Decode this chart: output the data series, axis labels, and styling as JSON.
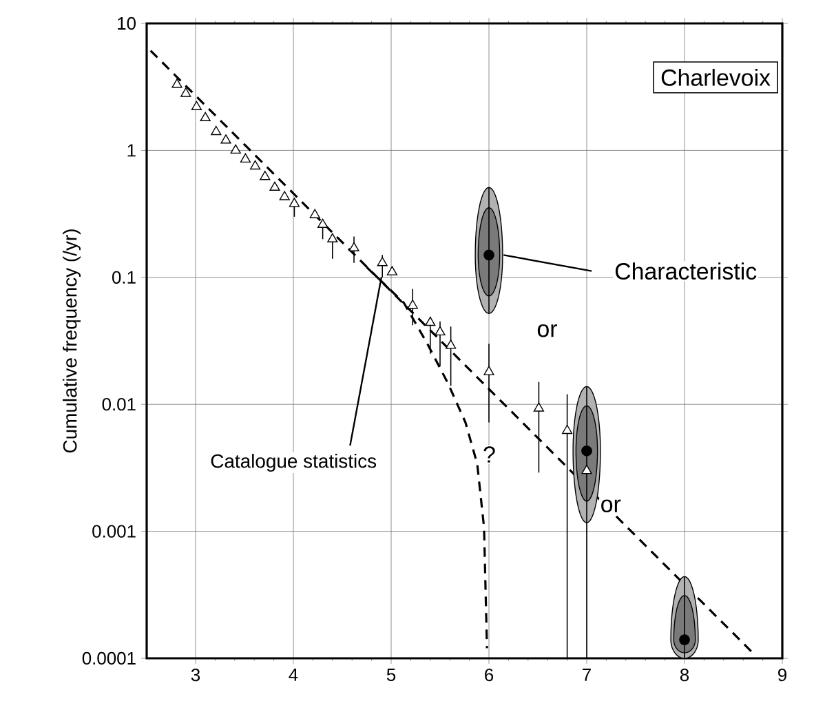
{
  "chart_data": {
    "type": "scatter",
    "ylabel": "Cumulative frequency (/yr)",
    "xlim": [
      2.5,
      9
    ],
    "ylim": [
      0.0001,
      10
    ],
    "xticks": [
      3,
      4,
      5,
      6,
      7,
      8,
      9
    ],
    "yticks": [
      0.0001,
      0.001,
      0.01,
      0.1,
      1,
      10
    ],
    "log": "y",
    "grid": true,
    "annotations": [
      "Charlevoix",
      "Characteristic",
      {
        "text": "Catalogue statistics",
        "x": 4.9,
        "y": 0.1
      },
      "or",
      "or",
      "?"
    ],
    "series": [
      {
        "marker": "triangle",
        "color": "#ffffff",
        "x": [
          2.81,
          2.9,
          3.01,
          3.1,
          3.21,
          3.31,
          3.41,
          3.51,
          3.61,
          3.71,
          3.81,
          3.91,
          4.01,
          4.22,
          4.3,
          4.4,
          4.62,
          4.91,
          5.01,
          5.22,
          5.4,
          5.5,
          5.61,
          6.0,
          6.51,
          6.8,
          7.0
        ],
        "values": [
          3.3,
          2.8,
          2.2,
          1.8,
          1.4,
          1.2,
          1.0,
          0.85,
          0.75,
          0.62,
          0.51,
          0.43,
          0.38,
          0.31,
          0.26,
          0.2,
          0.17,
          0.13,
          0.11,
          0.06,
          0.044,
          0.037,
          0.029,
          0.018,
          0.0093,
          0.0062,
          0.003
        ],
        "errors": [
          null,
          null,
          null,
          null,
          null,
          null,
          null,
          null,
          null,
          null,
          null,
          null,
          [
            0.3,
            0.41
          ],
          null,
          [
            0.2,
            0.28
          ],
          [
            0.14,
            0.22
          ],
          [
            0.13,
            0.21
          ],
          [
            0.1,
            0.15
          ],
          null,
          [
            0.042,
            0.081
          ],
          [
            0.025,
            0.049
          ],
          [
            0.02,
            0.045
          ],
          [
            0.014,
            0.041
          ],
          [
            0.0072,
            0.03
          ],
          [
            0.0029,
            0.015
          ],
          [
            0.0001,
            0.012
          ],
          [
            0.0001,
            0.005
          ]
        ]
      },
      {
        "type": "line",
        "line_style": "dashed",
        "color": "#000000",
        "x": [
          2.54,
          8.7
        ],
        "values": [
          6.1,
          0.00011
        ]
      },
      {
        "type": "line",
        "line_style": "dashed",
        "color": "#000000",
        "x": [
          4.75,
          4.94,
          5.13,
          5.37,
          5.58,
          5.76,
          5.88,
          5.95,
          5.98
        ],
        "values": [
          0.12,
          0.087,
          0.063,
          0.03,
          0.0147,
          0.0072,
          0.0034,
          0.00107,
          0.00012
        ]
      },
      {
        "type": "scatter",
        "marker": "circle",
        "color": "#000000",
        "x": [
          6,
          7,
          8
        ],
        "values": [
          0.15,
          0.0043,
          0.00014
        ],
        "errors": [
          [
            0.052,
            0.51
          ],
          [
            0.00117,
            0.0138
          ],
          [
            0.0001,
            0.00044
          ]
        ]
      }
    ]
  }
}
